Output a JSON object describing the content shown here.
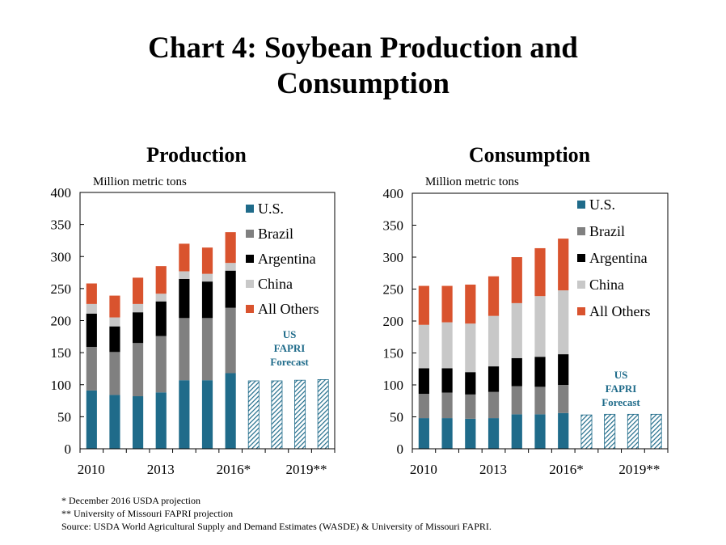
{
  "title_line1": "Chart 4: Soybean Production and",
  "title_line2": "Consumption",
  "colors": {
    "us": "#1f6b8a",
    "brazil": "#808080",
    "argentina": "#000000",
    "china": "#c8c8c8",
    "others": "#d9532e",
    "forecast": "#1f6b8a"
  },
  "chart_data": [
    {
      "type": "bar",
      "stacked": true,
      "title": "Production",
      "ylabel": "Million metric tons",
      "ylim": [
        0,
        400
      ],
      "yticks": [
        0,
        50,
        100,
        150,
        200,
        250,
        300,
        350,
        400
      ],
      "xticks": [
        "2010",
        "2013",
        "2016*",
        "2019**"
      ],
      "x": [
        "2010",
        "2011",
        "2012",
        "2013",
        "2014",
        "2015",
        "2016",
        "2017",
        "2018",
        "2019",
        "2020"
      ],
      "series": [
        {
          "name": "U.S.",
          "color_key": "us",
          "values": [
            91,
            84,
            82,
            88,
            107,
            107,
            118,
            null,
            null,
            null,
            null
          ]
        },
        {
          "name": "Brazil",
          "color_key": "brazil",
          "values": [
            68,
            67,
            83,
            88,
            97,
            97,
            102,
            null,
            null,
            null,
            null
          ]
        },
        {
          "name": "Argentina",
          "color_key": "argentina",
          "values": [
            52,
            40,
            48,
            54,
            61,
            57,
            58,
            null,
            null,
            null,
            null
          ]
        },
        {
          "name": "China",
          "color_key": "china",
          "values": [
            15,
            14,
            13,
            12,
            12,
            12,
            12,
            null,
            null,
            null,
            null
          ]
        },
        {
          "name": "All Others",
          "color_key": "others",
          "values": [
            32,
            34,
            41,
            43,
            43,
            41,
            48,
            null,
            null,
            null,
            null
          ]
        }
      ],
      "forecast": {
        "label_lines": [
          "US",
          "FAPRI",
          "Forecast"
        ],
        "values": [
          null,
          null,
          null,
          null,
          null,
          null,
          null,
          106,
          106,
          107,
          108
        ]
      },
      "legend": "top-right"
    },
    {
      "type": "bar",
      "stacked": true,
      "title": "Consumption",
      "ylabel": "Million metric tons",
      "ylim": [
        0,
        400
      ],
      "yticks": [
        0,
        50,
        100,
        150,
        200,
        250,
        300,
        350,
        400
      ],
      "xticks": [
        "2010",
        "2013",
        "2016*",
        "2019**"
      ],
      "x": [
        "2010",
        "2011",
        "2012",
        "2013",
        "2014",
        "2015",
        "2016",
        "2017",
        "2018",
        "2019",
        "2020"
      ],
      "series": [
        {
          "name": "U.S.",
          "color_key": "us",
          "values": [
            48,
            48,
            47,
            48,
            54,
            54,
            56,
            null,
            null,
            null,
            null
          ]
        },
        {
          "name": "Brazil",
          "color_key": "brazil",
          "values": [
            38,
            40,
            38,
            41,
            44,
            43,
            44,
            null,
            null,
            null,
            null
          ]
        },
        {
          "name": "Argentina",
          "color_key": "argentina",
          "values": [
            40,
            38,
            35,
            40,
            44,
            47,
            48,
            null,
            null,
            null,
            null
          ]
        },
        {
          "name": "China",
          "color_key": "china",
          "values": [
            68,
            72,
            76,
            79,
            86,
            95,
            100,
            null,
            null,
            null,
            null
          ]
        },
        {
          "name": "All Others",
          "color_key": "others",
          "values": [
            61,
            57,
            61,
            62,
            72,
            75,
            81,
            null,
            null,
            null,
            null
          ]
        }
      ],
      "forecast": {
        "label_lines": [
          "US",
          "FAPRI",
          "Forecast"
        ],
        "values": [
          null,
          null,
          null,
          null,
          null,
          null,
          null,
          53,
          54,
          54,
          54
        ]
      },
      "legend": "top-right"
    }
  ],
  "notes": [
    "* December 2016 USDA projection",
    "** University of Missouri FAPRI projection",
    "Source: USDA World Agricultural Supply and Demand Estimates (WASDE) & University of Missouri FAPRI."
  ]
}
